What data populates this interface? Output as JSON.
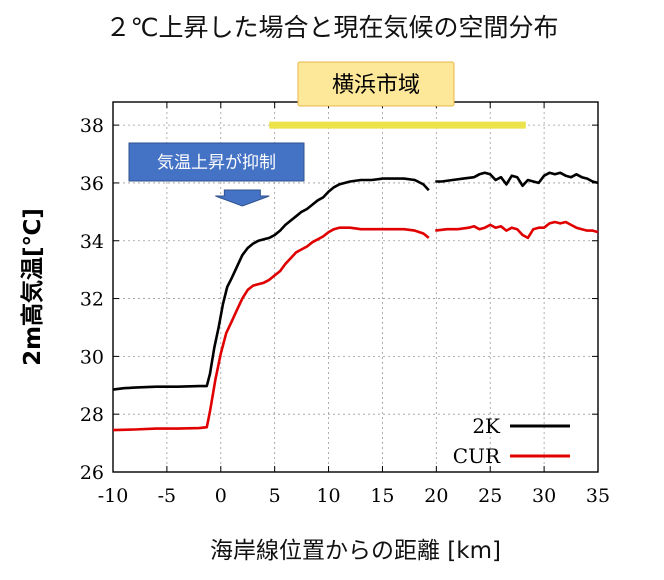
{
  "chart_data": {
    "type": "line",
    "title": "２℃上昇した場合と現在気候の空間分布",
    "xlabel": "海岸線位置からの距離 [km]",
    "ylabel": "2m高気温[℃]",
    "xlim": [
      -10,
      35
    ],
    "ylim": [
      26,
      38.8
    ],
    "xticks": [
      -10,
      -5,
      0,
      5,
      10,
      15,
      20,
      25,
      30,
      35
    ],
    "yticks": [
      26,
      28,
      30,
      32,
      34,
      36,
      38
    ],
    "grid": true,
    "legend_position": "bottom-right",
    "gap_x": [
      19.3,
      19.9
    ],
    "series": [
      {
        "name": "2K",
        "color": "#000000",
        "points": [
          [
            -10,
            28.85
          ],
          [
            -9,
            28.9
          ],
          [
            -8,
            28.92
          ],
          [
            -6,
            28.95
          ],
          [
            -4,
            28.95
          ],
          [
            -2,
            28.97
          ],
          [
            -1.3,
            28.97
          ],
          [
            -1,
            29.4
          ],
          [
            -0.6,
            30.3
          ],
          [
            -0.2,
            31.0
          ],
          [
            0.2,
            31.8
          ],
          [
            0.6,
            32.4
          ],
          [
            1,
            32.7
          ],
          [
            1.5,
            33.1
          ],
          [
            2,
            33.5
          ],
          [
            2.5,
            33.75
          ],
          [
            3,
            33.9
          ],
          [
            3.5,
            34.0
          ],
          [
            4,
            34.05
          ],
          [
            4.5,
            34.1
          ],
          [
            5,
            34.2
          ],
          [
            5.5,
            34.35
          ],
          [
            6,
            34.55
          ],
          [
            6.5,
            34.7
          ],
          [
            7,
            34.85
          ],
          [
            7.5,
            35.0
          ],
          [
            8,
            35.1
          ],
          [
            8.5,
            35.25
          ],
          [
            9,
            35.4
          ],
          [
            9.5,
            35.5
          ],
          [
            10,
            35.7
          ],
          [
            10.5,
            35.85
          ],
          [
            11,
            35.95
          ],
          [
            12,
            36.05
          ],
          [
            13,
            36.1
          ],
          [
            14,
            36.1
          ],
          [
            15,
            36.15
          ],
          [
            16,
            36.15
          ],
          [
            17,
            36.15
          ],
          [
            18,
            36.1
          ],
          [
            18.8,
            35.95
          ],
          [
            19.3,
            35.75
          ],
          [
            19.9,
            36.05
          ],
          [
            20.5,
            36.05
          ],
          [
            21.5,
            36.1
          ],
          [
            22.5,
            36.15
          ],
          [
            23.5,
            36.2
          ],
          [
            24,
            36.3
          ],
          [
            24.5,
            36.35
          ],
          [
            25,
            36.3
          ],
          [
            25.5,
            36.1
          ],
          [
            26,
            36.2
          ],
          [
            26.5,
            35.95
          ],
          [
            27,
            36.25
          ],
          [
            27.5,
            36.2
          ],
          [
            28,
            35.9
          ],
          [
            28.5,
            36.1
          ],
          [
            29,
            36.05
          ],
          [
            29.5,
            36.0
          ],
          [
            30,
            36.25
          ],
          [
            30.5,
            36.35
          ],
          [
            31,
            36.3
          ],
          [
            31.5,
            36.35
          ],
          [
            32,
            36.25
          ],
          [
            32.5,
            36.2
          ],
          [
            33,
            36.3
          ],
          [
            33.5,
            36.2
          ],
          [
            34,
            36.15
          ],
          [
            34.5,
            36.05
          ],
          [
            35,
            36.0
          ]
        ]
      },
      {
        "name": "CUR",
        "color": "#e00000",
        "points": [
          [
            -10,
            27.45
          ],
          [
            -8,
            27.47
          ],
          [
            -6,
            27.5
          ],
          [
            -4,
            27.5
          ],
          [
            -2,
            27.52
          ],
          [
            -1.3,
            27.55
          ],
          [
            -1,
            28.1
          ],
          [
            -0.5,
            29.2
          ],
          [
            0,
            30.1
          ],
          [
            0.5,
            30.8
          ],
          [
            1,
            31.2
          ],
          [
            1.5,
            31.6
          ],
          [
            2,
            32.0
          ],
          [
            2.5,
            32.3
          ],
          [
            3,
            32.45
          ],
          [
            3.5,
            32.5
          ],
          [
            4,
            32.55
          ],
          [
            4.5,
            32.65
          ],
          [
            5,
            32.8
          ],
          [
            5.5,
            32.95
          ],
          [
            6,
            33.2
          ],
          [
            6.5,
            33.4
          ],
          [
            7,
            33.6
          ],
          [
            7.5,
            33.7
          ],
          [
            8,
            33.8
          ],
          [
            8.5,
            33.95
          ],
          [
            9,
            34.05
          ],
          [
            9.5,
            34.15
          ],
          [
            10,
            34.3
          ],
          [
            10.5,
            34.4
          ],
          [
            11,
            34.45
          ],
          [
            12,
            34.45
          ],
          [
            13,
            34.4
          ],
          [
            14,
            34.4
          ],
          [
            15,
            34.4
          ],
          [
            16,
            34.4
          ],
          [
            17,
            34.4
          ],
          [
            18,
            34.35
          ],
          [
            18.8,
            34.25
          ],
          [
            19.3,
            34.1
          ],
          [
            19.9,
            34.35
          ],
          [
            21,
            34.4
          ],
          [
            22,
            34.4
          ],
          [
            23,
            34.45
          ],
          [
            23.5,
            34.5
          ],
          [
            24,
            34.4
          ],
          [
            24.5,
            34.45
          ],
          [
            25,
            34.55
          ],
          [
            25.5,
            34.45
          ],
          [
            26,
            34.5
          ],
          [
            26.5,
            34.35
          ],
          [
            27,
            34.45
          ],
          [
            27.5,
            34.4
          ],
          [
            28,
            34.2
          ],
          [
            28.5,
            34.1
          ],
          [
            29,
            34.4
          ],
          [
            29.5,
            34.45
          ],
          [
            30,
            34.45
          ],
          [
            30.5,
            34.6
          ],
          [
            31,
            34.65
          ],
          [
            31.5,
            34.6
          ],
          [
            32,
            34.65
          ],
          [
            32.5,
            34.55
          ],
          [
            33,
            34.45
          ],
          [
            33.5,
            34.4
          ],
          [
            34,
            34.35
          ],
          [
            34.5,
            34.35
          ],
          [
            35,
            34.3
          ]
        ]
      }
    ],
    "annotations": {
      "city_label": "横浜市域",
      "city_range_x": [
        4.5,
        28.3
      ],
      "city_bar_y": 38.0,
      "city_label_color": "#fde799",
      "city_bar_color": "#ece24a",
      "suppress_label": "気温上昇が抑制",
      "suppress_label_color": "#4472c4",
      "arrow_x": [
        -0.5,
        4.5
      ]
    }
  }
}
